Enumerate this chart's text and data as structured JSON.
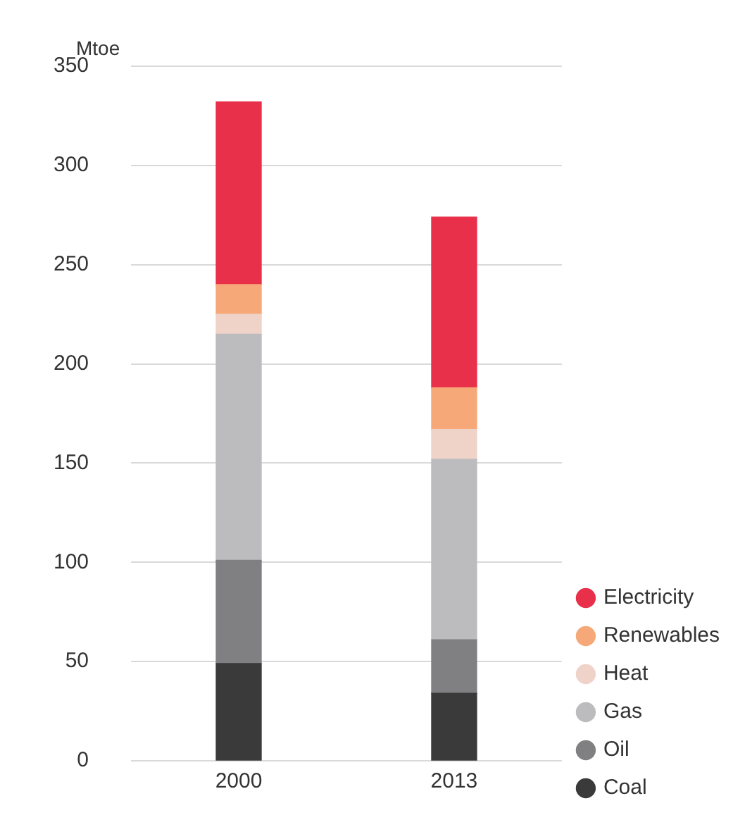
{
  "chart_data": {
    "type": "bar",
    "ylabel": "Mtoe",
    "categories": [
      "2000",
      "2013"
    ],
    "stacked": true,
    "series": [
      {
        "name": "Coal",
        "color": "#3a3a3a",
        "values": [
          49,
          34
        ]
      },
      {
        "name": "Oil",
        "color": "#808082",
        "values": [
          52,
          27
        ]
      },
      {
        "name": "Gas",
        "color": "#bcbcbf",
        "values": [
          114,
          91
        ]
      },
      {
        "name": "Heat",
        "color": "#efd3c8",
        "values": [
          10,
          15
        ]
      },
      {
        "name": "Renewables",
        "color": "#f6a878",
        "values": [
          15,
          21
        ]
      },
      {
        "name": "Electricity",
        "color": "#e8304a",
        "values": [
          92,
          86
        ]
      }
    ],
    "ylim": [
      0,
      350
    ],
    "yticks": [
      0,
      50,
      100,
      150,
      200,
      250,
      300,
      350
    ],
    "grid": "y",
    "legend": "right"
  }
}
